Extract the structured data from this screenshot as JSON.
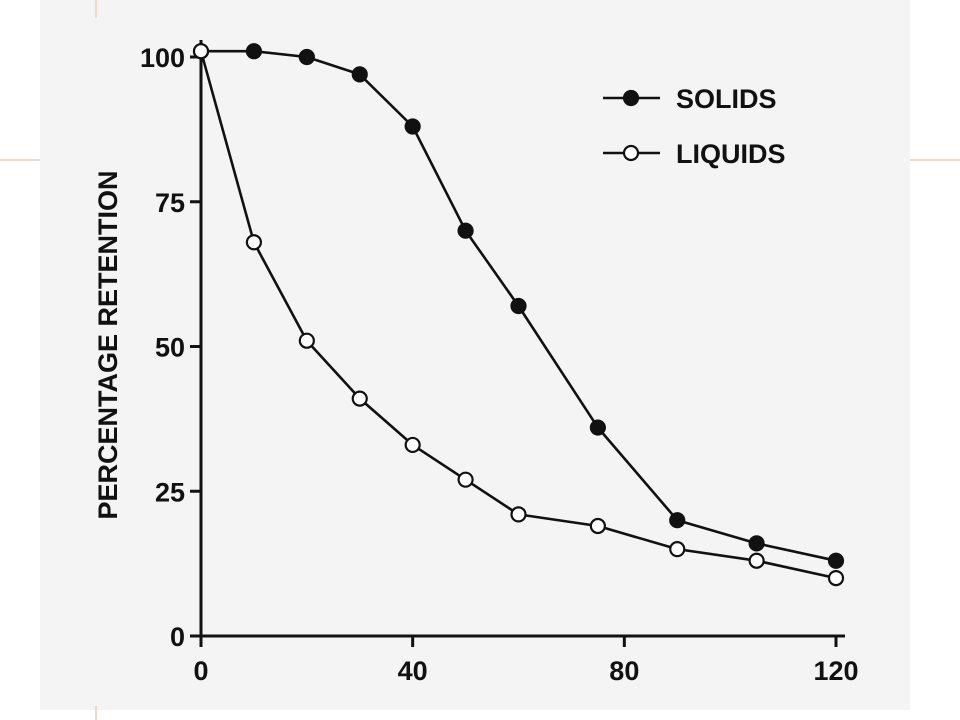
{
  "chart_data": {
    "type": "line",
    "title": "",
    "xlabel": "",
    "ylabel": "PERCENTAGE RETENTION",
    "xlim": [
      0,
      120
    ],
    "ylim": [
      0,
      100
    ],
    "xticks": [
      0,
      40,
      80,
      120
    ],
    "yticks": [
      0,
      25,
      50,
      75,
      100
    ],
    "xtick_labels": [
      "0",
      "40",
      "80",
      "120"
    ],
    "ytick_labels": [
      "0",
      "25",
      "50",
      "75",
      "100"
    ],
    "grid": false,
    "legend_position": "top-right",
    "series": [
      {
        "name": "SOLIDS",
        "marker": "filled-circle",
        "color": "#111111",
        "x": [
          0,
          10,
          20,
          30,
          40,
          50,
          60,
          75,
          90,
          105,
          120
        ],
        "y": [
          101,
          101,
          100,
          97,
          88,
          70,
          57,
          36,
          20,
          16,
          13
        ]
      },
      {
        "name": "LIQUIDS",
        "marker": "open-circle",
        "color": "#111111",
        "x": [
          0,
          10,
          20,
          30,
          40,
          50,
          60,
          75,
          90,
          105,
          120
        ],
        "y": [
          101,
          68,
          51,
          41,
          33,
          27,
          21,
          19,
          15,
          13,
          10
        ]
      }
    ]
  }
}
